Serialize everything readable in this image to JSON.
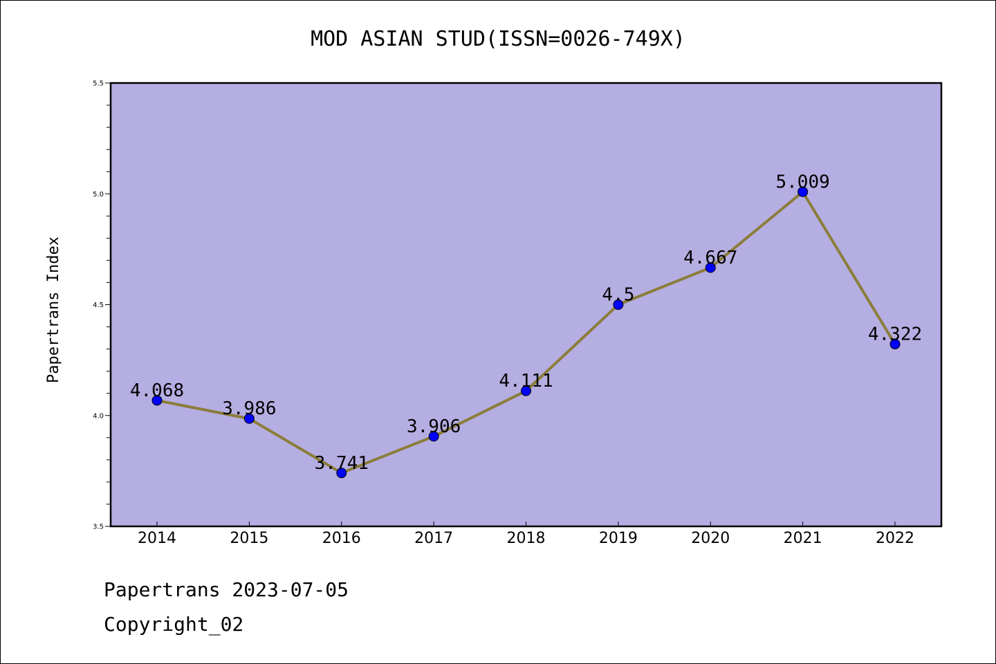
{
  "chart_data": {
    "type": "line",
    "title": "MOD ASIAN STUD(ISSN=0026-749X)",
    "xlabel": "",
    "ylabel": "Papertrans Index",
    "categories": [
      "2014",
      "2015",
      "2016",
      "2017",
      "2018",
      "2019",
      "2020",
      "2021",
      "2022"
    ],
    "series": [
      {
        "values": [
          4.068,
          3.986,
          3.741,
          3.906,
          4.111,
          4.5,
          4.667,
          5.009,
          4.322
        ],
        "labels": [
          "4.068",
          "3.986",
          "3.741",
          "3.906",
          "4.111",
          "4.5",
          "4.667",
          "5.009",
          "4.322"
        ],
        "line_color": "#8B7D3A",
        "marker_color": "#0000FF"
      }
    ],
    "ylim": [
      3.5,
      5.5
    ],
    "yticks": [
      "3.5",
      "4.0",
      "4.5",
      "5.0",
      "5.5"
    ],
    "plot_background": "#B5AEE2",
    "grid": false,
    "legend": "none"
  },
  "footer": {
    "line1": "Papertrans 2023-07-05",
    "line2": "Copyright_02"
  }
}
